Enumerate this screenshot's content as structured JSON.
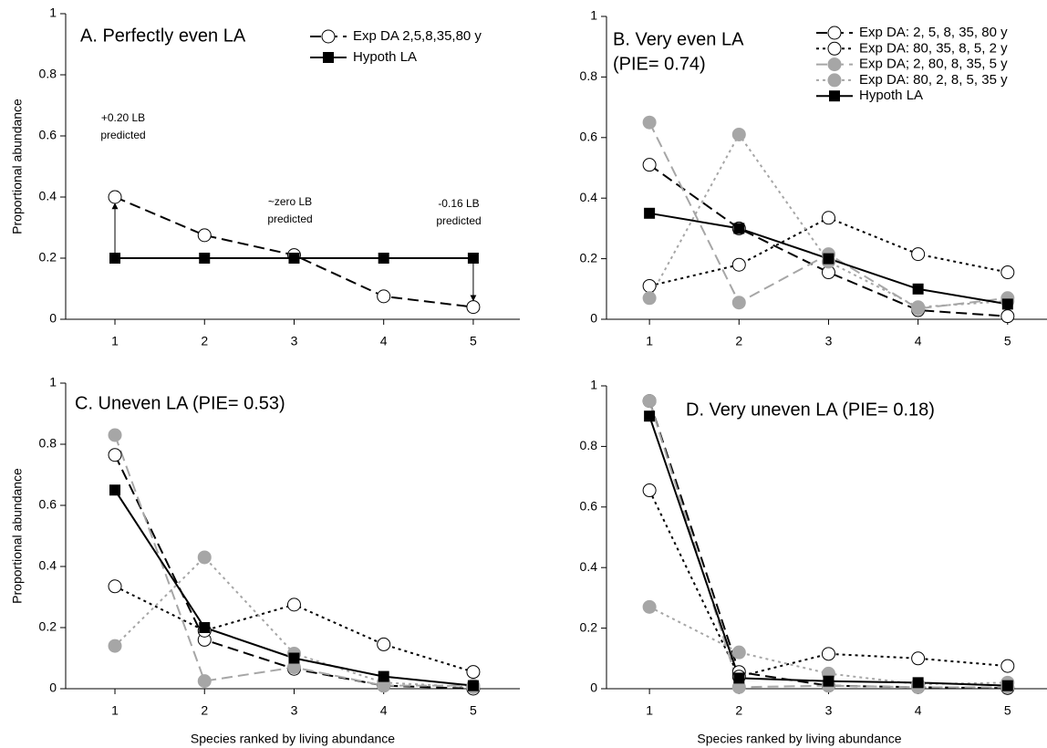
{
  "chart_data": [
    {
      "type": "line",
      "title": "A. Perfectly even LA",
      "ylabel": "Proportional abundance",
      "x": [
        1,
        2,
        3,
        4,
        5
      ],
      "xticks": [
        1,
        2,
        3,
        4,
        5
      ],
      "xlim": [
        0.45,
        5.52
      ],
      "ylim": [
        0,
        1
      ],
      "yticks": [
        0,
        0.2,
        0.4,
        0.6,
        0.8,
        1
      ],
      "legend": "upper right",
      "series": [
        {
          "name": "Exp DA  2,5,8,35,80 y",
          "color": "#000000",
          "marker": "open-circle",
          "dash": "long",
          "values": [
            0.4,
            0.275,
            0.21,
            0.075,
            0.04
          ]
        },
        {
          "name": "Hypoth LA",
          "color": "#000000",
          "marker": "square",
          "dash": "solid",
          "values": [
            0.2,
            0.2,
            0.2,
            0.2,
            0.2
          ]
        }
      ],
      "annotations": [
        {
          "text": [
            "+0.20 LB",
            "predicted"
          ]
        },
        {
          "text": [
            "~zero LB",
            "predicted"
          ]
        },
        {
          "text": [
            "-0.16 LB",
            "predicted"
          ]
        }
      ]
    },
    {
      "type": "line",
      "title": "B. Very even LA",
      "subtitle": "(PIE= 0.74)",
      "x": [
        1,
        2,
        3,
        4,
        5
      ],
      "xticks": [
        1,
        2,
        3,
        4,
        5
      ],
      "xlim": [
        0.52,
        5.44
      ],
      "ylim": [
        0,
        1
      ],
      "yticks": [
        0,
        0.2,
        0.4,
        0.6,
        0.8,
        1
      ],
      "legend": "upper right",
      "series": [
        {
          "name": "Exp DA:  2, 5, 8, 35, 80 y",
          "color": "#000000",
          "marker": "open-circle",
          "dash": "long",
          "values": [
            0.51,
            0.3,
            0.155,
            0.03,
            0.01
          ]
        },
        {
          "name": "Exp DA:  80, 35, 8, 5, 2 y",
          "color": "#000000",
          "marker": "open-circle",
          "dash": "dotted",
          "values": [
            0.11,
            0.18,
            0.335,
            0.215,
            0.155
          ]
        },
        {
          "name": "Exp DA;  2, 80, 8, 35, 5 y",
          "color": "#a6a6a6",
          "marker": "filled-circle",
          "dash": "long",
          "values": [
            0.65,
            0.055,
            0.215,
            0.035,
            0.07
          ]
        },
        {
          "name": "Exp DA:  80, 2, 8, 5, 35 y",
          "color": "#a6a6a6",
          "marker": "filled-circle",
          "dash": "dotted",
          "values": [
            0.07,
            0.61,
            0.19,
            0.04,
            0.06
          ]
        },
        {
          "name": "Hypoth LA",
          "color": "#000000",
          "marker": "square",
          "dash": "solid",
          "values": [
            0.35,
            0.3,
            0.2,
            0.1,
            0.05
          ]
        }
      ]
    },
    {
      "type": "line",
      "title": "C. Uneven LA (PIE= 0.53)",
      "ylabel": "Proportional abundance",
      "xlabel": "Species ranked by living abundance",
      "x": [
        1,
        2,
        3,
        4,
        5
      ],
      "xticks": [
        1,
        2,
        3,
        4,
        5
      ],
      "xlim": [
        0.45,
        5.52
      ],
      "ylim": [
        0,
        1
      ],
      "yticks": [
        0,
        0.2,
        0.4,
        0.6,
        0.8,
        1
      ],
      "series": [
        {
          "color": "#000000",
          "marker": "open-circle",
          "dash": "long",
          "values": [
            0.765,
            0.16,
            0.065,
            0.01,
            0
          ]
        },
        {
          "color": "#000000",
          "marker": "open-circle",
          "dash": "dotted",
          "values": [
            0.335,
            0.19,
            0.275,
            0.145,
            0.055
          ]
        },
        {
          "color": "#a6a6a6",
          "marker": "filled-circle",
          "dash": "long",
          "values": [
            0.83,
            0.025,
            0.07,
            0.01,
            0.01
          ]
        },
        {
          "color": "#a6a6a6",
          "marker": "filled-circle",
          "dash": "dotted",
          "values": [
            0.14,
            0.43,
            0.115,
            0.02,
            0.005
          ]
        },
        {
          "color": "#000000",
          "marker": "square",
          "dash": "solid",
          "values": [
            0.65,
            0.2,
            0.1,
            0.04,
            0.01
          ]
        }
      ]
    },
    {
      "type": "line",
      "title": "D. Very uneven LA (PIE= 0.18)",
      "xlabel": "Species ranked by living abundance",
      "x": [
        1,
        2,
        3,
        4,
        5
      ],
      "xticks": [
        1,
        2,
        3,
        4,
        5
      ],
      "xlim": [
        0.52,
        5.44
      ],
      "ylim": [
        0,
        1
      ],
      "yticks": [
        0,
        0.2,
        0.4,
        0.6,
        0.8,
        1
      ],
      "series": [
        {
          "color": "#000000",
          "marker": "open-circle",
          "dash": "long",
          "values": [
            0.95,
            0.055,
            0.01,
            0.005,
            0.002
          ]
        },
        {
          "color": "#000000",
          "marker": "open-circle",
          "dash": "dotted",
          "values": [
            0.655,
            0.04,
            0.115,
            0.1,
            0.075
          ]
        },
        {
          "color": "#a6a6a6",
          "marker": "filled-circle",
          "dash": "long",
          "values": [
            0.95,
            0.005,
            0.01,
            0.005,
            0.005
          ]
        },
        {
          "color": "#a6a6a6",
          "marker": "filled-circle",
          "dash": "dotted",
          "values": [
            0.27,
            0.12,
            0.05,
            0.015,
            0.02
          ]
        },
        {
          "color": "#000000",
          "marker": "square",
          "dash": "solid",
          "values": [
            0.9,
            0.035,
            0.025,
            0.02,
            0.01
          ]
        }
      ]
    }
  ]
}
